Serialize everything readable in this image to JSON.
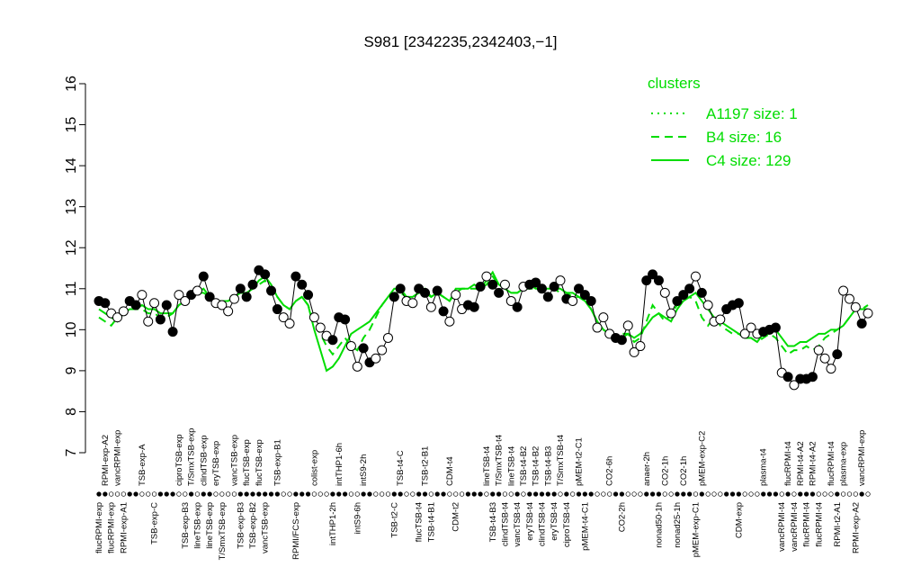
{
  "chart_data": {
    "type": "line",
    "title": "S981 [2342235,2342403,−1]",
    "categories": [
      "flucRPMI-exp",
      "RPMI-exp-A2",
      "flucRPMI-exp",
      "vancRPMI-exp",
      "RPMI-exp-A1",
      null,
      null,
      "TSB-exp-A",
      null,
      "TSB-exp-C",
      null,
      null,
      null,
      "ciproTSB-exp",
      "TSB-exp-B3",
      "T/SmxTSB-exp",
      "lineTSB-exp",
      "clindTSB-exp",
      "lineTSB-exp",
      "eryTSB-exp",
      "T/SmxTSB-exp",
      null,
      "vancTSB-exp",
      "TSB-exp-B3",
      "flucTSB-exp",
      "TSB-exp-B2",
      "flucTSB-exp",
      "vancTSB-exp",
      null,
      "TSB-exp-B1",
      null,
      null,
      "RPMI/FCS-exp",
      null,
      null,
      "colist-exp",
      null,
      null,
      "intTHP1-2h",
      "intTHP1-6h",
      null,
      null,
      "intS9-6h",
      "intS9-2h",
      null,
      null,
      null,
      null,
      "TSB-t2-C",
      "TSB-t4-C",
      null,
      null,
      "flucTSB-t4",
      "TSB-t2-B1",
      "TSB-t4-B1",
      null,
      null,
      "CDM-t4",
      "CDM-t2",
      null,
      null,
      null,
      null,
      "lineTSB-t4",
      "TSB-t4-B3",
      "T/SmxTSB-t4",
      "clindTSB-t4",
      "lineTSB-t4",
      "vancTSB-t4",
      "TSB-t4-B2",
      "eryTSB-t4",
      "TSB-t4-B2",
      "clindTSB-t4",
      "TSB-t4-B3",
      "eryTSB-t4",
      "T/SmxTSB-t4",
      "ciproTSB-t4",
      null,
      "pMEM-t2-C1",
      "pMEM-t4-C1",
      null,
      null,
      null,
      "CO2-6h",
      null,
      "CO2-2h",
      null,
      null,
      null,
      "anaer-2h",
      null,
      "nonad50-1h",
      "CO2-1h",
      null,
      "nonad25-1h",
      "CO2-1h",
      null,
      "pMEM-exp-C1",
      "pMEM-exp-C2",
      null,
      null,
      null,
      null,
      null,
      "CDM-exp",
      null,
      null,
      null,
      "plasma-t4",
      null,
      null,
      "vancRPMI-t4",
      "flucRPMI-t4",
      "vancRPMI-t4",
      "RPMI-t4-A2",
      "flucRPMI-t4",
      "RPMI-t4-A2",
      "flucRPMI-t4",
      null,
      "flucRPMI-t4",
      "RPMI-t2-A1",
      "plasma-exp",
      null,
      "RPMI-exp-A2",
      "vancRPMI-exp",
      null
    ],
    "values": [
      10.7,
      10.65,
      10.4,
      10.3,
      10.45,
      10.7,
      10.6,
      10.85,
      10.2,
      10.65,
      10.25,
      10.6,
      9.95,
      10.85,
      10.7,
      10.85,
      10.95,
      11.3,
      10.8,
      10.65,
      10.6,
      10.45,
      10.75,
      11.0,
      10.8,
      11.1,
      11.45,
      11.35,
      10.95,
      10.5,
      10.3,
      10.15,
      11.3,
      11.1,
      10.85,
      10.3,
      10.05,
      9.85,
      9.75,
      10.3,
      10.25,
      9.6,
      9.1,
      9.55,
      9.2,
      9.3,
      9.5,
      9.8,
      10.8,
      11.0,
      10.7,
      10.65,
      11.0,
      10.9,
      10.55,
      10.95,
      10.45,
      10.2,
      10.85,
      10.5,
      10.6,
      10.55,
      11.05,
      11.3,
      11.1,
      10.9,
      11.1,
      10.7,
      10.55,
      11.05,
      11.1,
      11.15,
      11.0,
      10.8,
      11.05,
      11.2,
      10.75,
      10.7,
      11.0,
      10.85,
      10.7,
      10.05,
      10.3,
      9.9,
      9.8,
      9.75,
      10.1,
      9.45,
      9.6,
      11.2,
      11.35,
      11.2,
      10.9,
      10.4,
      10.7,
      10.85,
      11.0,
      11.3,
      10.9,
      10.6,
      10.2,
      10.25,
      10.5,
      10.6,
      10.65,
      9.9,
      10.05,
      9.9,
      9.95,
      10.0,
      10.05,
      8.95,
      8.85,
      8.65,
      8.8,
      8.8,
      8.85,
      9.5,
      9.3,
      9.05,
      9.4,
      10.95,
      10.75,
      10.55,
      10.15,
      10.4
    ],
    "marker_fills": [
      "#000",
      "#000",
      "#fff",
      "#fff",
      "#fff",
      "#000",
      "#000",
      "#fff",
      "#fff",
      "#fff",
      "#000",
      "#000",
      "#000",
      "#fff",
      "#fff",
      "#000",
      "#fff",
      "#000",
      "#000",
      "#fff",
      "#fff",
      "#fff",
      "#fff",
      "#000",
      "#000",
      "#000",
      "#000",
      "#000",
      "#000",
      "#000",
      "#fff",
      "#fff",
      "#000",
      "#000",
      "#000",
      "#fff",
      "#fff",
      "#fff",
      "#000",
      "#000",
      "#000",
      "#fff",
      "#fff",
      "#000",
      "#000",
      "#fff",
      "#fff",
      "#fff",
      "#000",
      "#000",
      "#fff",
      "#fff",
      "#000",
      "#000",
      "#fff",
      "#000",
      "#000",
      "#fff",
      "#fff",
      "#fff",
      "#000",
      "#000",
      "#000",
      "#fff",
      "#000",
      "#000",
      "#fff",
      "#fff",
      "#000",
      "#fff",
      "#000",
      "#000",
      "#000",
      "#000",
      "#000",
      "#fff",
      "#000",
      "#fff",
      "#000",
      "#000",
      "#000",
      "#fff",
      "#fff",
      "#fff",
      "#000",
      "#000",
      "#fff",
      "#fff",
      "#fff",
      "#000",
      "#000",
      "#000",
      "#fff",
      "#fff",
      "#000",
      "#000",
      "#000",
      "#fff",
      "#000",
      "#fff",
      "#fff",
      "#fff",
      "#000",
      "#000",
      "#000",
      "#fff",
      "#fff",
      "#fff",
      "#000",
      "#000",
      "#000",
      "#fff",
      "#000",
      "#fff",
      "#000",
      "#000",
      "#000",
      "#fff",
      "#fff",
      "#fff",
      "#000",
      "#fff",
      "#fff",
      "#fff",
      "#000",
      "#fff"
    ],
    "series": [
      {
        "name": "A1197 size: 1",
        "color": "#00dd00",
        "dash": "dotted"
      },
      {
        "name": "B4 size: 16",
        "color": "#00dd00",
        "dash": "dashed",
        "values": [
          10.3,
          10.2,
          10.1,
          10.3,
          10.4,
          10.5,
          10.5,
          10.5,
          10.4,
          10.4,
          10.3,
          10.3,
          10.4,
          10.6,
          10.7,
          10.8,
          10.9,
          10.9,
          10.8,
          10.7,
          10.7,
          10.7,
          10.8,
          10.9,
          10.9,
          11.0,
          11.1,
          11.2,
          11.0,
          10.8,
          10.6,
          10.5,
          10.7,
          10.8,
          10.6,
          10.2,
          9.9,
          9.6,
          9.4,
          9.6,
          9.8,
          9.6,
          9.5,
          9.8,
          10.0,
          10.3,
          10.6,
          10.8,
          10.9,
          10.9,
          10.8,
          10.8,
          10.9,
          10.9,
          10.8,
          10.9,
          10.8,
          10.7,
          10.9,
          11.0,
          11.0,
          11.0,
          11.0,
          11.1,
          11.3,
          11.1,
          11.0,
          10.9,
          10.9,
          11.0,
          11.0,
          11.0,
          11.0,
          11.0,
          11.0,
          10.9,
          10.9,
          10.8,
          10.8,
          10.7,
          10.5,
          10.2,
          10.0,
          9.9,
          9.8,
          9.9,
          9.9,
          9.7,
          9.8,
          10.2,
          10.6,
          10.4,
          10.2,
          10.4,
          10.6,
          10.7,
          10.8,
          10.7,
          10.3,
          10.1,
          10.3,
          10.1,
          10.0,
          9.9,
          9.9,
          9.8,
          9.8,
          9.7,
          9.8,
          9.9,
          9.8,
          9.6,
          9.4,
          9.5,
          9.5,
          9.6,
          9.5,
          9.6,
          9.8,
          9.9,
          10.0,
          10.1,
          10.3,
          10.5,
          10.5,
          10.6
        ]
      },
      {
        "name": "C4 size: 129",
        "color": "#00dd00",
        "dash": "solid",
        "values": [
          10.5,
          10.4,
          10.3,
          10.2,
          10.4,
          10.5,
          10.5,
          10.6,
          10.5,
          10.5,
          10.4,
          10.4,
          10.4,
          10.6,
          10.7,
          10.8,
          10.9,
          11.0,
          10.8,
          10.7,
          10.7,
          10.7,
          10.8,
          10.9,
          10.9,
          11.0,
          11.2,
          11.3,
          11.1,
          10.8,
          10.6,
          10.5,
          10.7,
          10.8,
          10.6,
          10.0,
          9.5,
          9.0,
          9.1,
          9.3,
          9.6,
          9.9,
          10.0,
          10.1,
          10.2,
          10.4,
          10.6,
          10.8,
          11.0,
          11.0,
          10.8,
          10.8,
          10.9,
          11.0,
          10.8,
          10.9,
          10.8,
          10.7,
          11.0,
          11.0,
          11.0,
          11.1,
          11.0,
          11.2,
          11.4,
          11.1,
          11.0,
          10.9,
          10.9,
          11.0,
          11.1,
          11.0,
          11.0,
          11.0,
          11.0,
          11.0,
          10.9,
          10.9,
          10.8,
          10.7,
          10.5,
          10.2,
          10.0,
          9.9,
          9.8,
          9.8,
          9.9,
          9.8,
          9.9,
          10.1,
          10.3,
          10.4,
          10.3,
          10.2,
          10.5,
          10.7,
          10.8,
          10.9,
          10.7,
          10.5,
          10.3,
          10.2,
          10.1,
          10.0,
          9.9,
          9.8,
          9.8,
          9.7,
          9.9,
          9.9,
          10.0,
          9.8,
          9.6,
          9.6,
          9.7,
          9.7,
          9.8,
          9.9,
          9.9,
          10.0,
          10.0,
          10.1,
          10.3,
          10.5,
          10.5,
          10.5
        ]
      }
    ],
    "legend_title": "clusters",
    "legend": "top-right",
    "ylim": [
      7,
      16
    ],
    "yticks": [
      7,
      8,
      9,
      10,
      11,
      12,
      13,
      14,
      15,
      16
    ]
  }
}
